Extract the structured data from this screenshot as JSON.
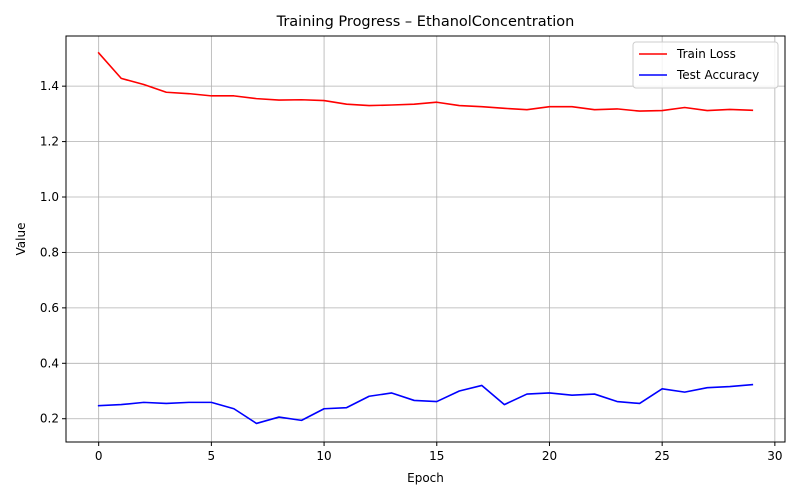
{
  "chart_data": {
    "type": "line",
    "title": "Training Progress – EthanolConcentration",
    "xlabel": "Epoch",
    "ylabel": "Value",
    "xlim": [
      -1.45,
      30.45
    ],
    "ylim": [
      0.116,
      1.581
    ],
    "xticks": [
      0,
      5,
      10,
      15,
      20,
      25,
      30
    ],
    "yticks": [
      0.2,
      0.4,
      0.6,
      0.8,
      1.0,
      1.2,
      1.4
    ],
    "grid": true,
    "legend_position": "top-right",
    "x": [
      0,
      1,
      2,
      3,
      4,
      5,
      6,
      7,
      8,
      9,
      10,
      11,
      12,
      13,
      14,
      15,
      16,
      17,
      18,
      19,
      20,
      21,
      22,
      23,
      24,
      25,
      26,
      27,
      28,
      29
    ],
    "series": [
      {
        "name": "Train Loss",
        "color": "#ff0000",
        "values": [
          1.52,
          1.428,
          1.406,
          1.378,
          1.373,
          1.365,
          1.365,
          1.355,
          1.35,
          1.351,
          1.348,
          1.335,
          1.33,
          1.332,
          1.335,
          1.342,
          1.33,
          1.326,
          1.32,
          1.315,
          1.326,
          1.326,
          1.315,
          1.318,
          1.31,
          1.312,
          1.323,
          1.312,
          1.316,
          1.313
        ]
      },
      {
        "name": "Test Accuracy",
        "color": "#0000ff",
        "values": [
          0.247,
          0.251,
          0.259,
          0.255,
          0.259,
          0.259,
          0.236,
          0.183,
          0.206,
          0.194,
          0.236,
          0.24,
          0.281,
          0.293,
          0.266,
          0.262,
          0.3,
          0.32,
          0.251,
          0.289,
          0.293,
          0.285,
          0.289,
          0.262,
          0.255,
          0.308,
          0.296,
          0.312,
          0.316,
          0.323
        ]
      }
    ]
  }
}
